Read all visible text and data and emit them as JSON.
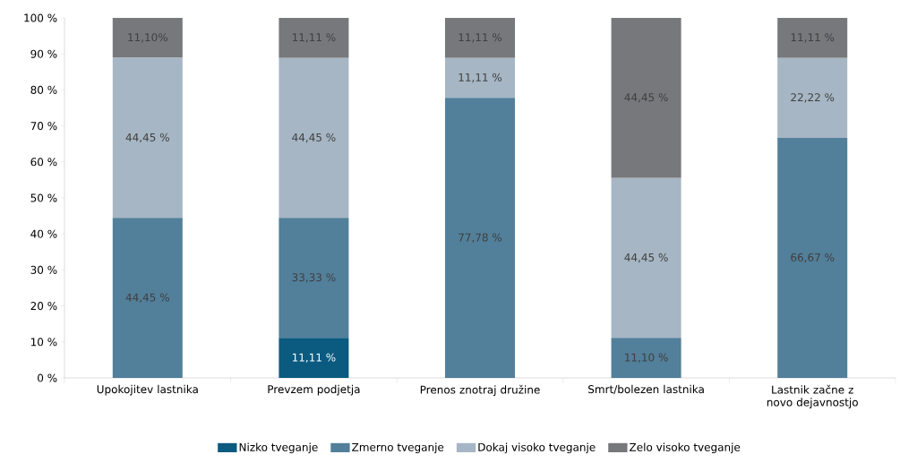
{
  "chart_data": {
    "type": "bar",
    "stacked": true,
    "legend": "bottom",
    "categories": [
      "Upokojitev lastnika",
      "Prevzem podjetja",
      "Prenos znotraj družine",
      "Smrt/bolezen lastnika",
      "Lastnik začne z novo dejavnostjo"
    ],
    "ylim": [
      0,
      100
    ],
    "yticks": [
      {
        "value": 0,
        "label": "0 %"
      },
      {
        "value": 10,
        "label": "10 %"
      },
      {
        "value": 20,
        "label": "20 %"
      },
      {
        "value": 30,
        "label": "30 %"
      },
      {
        "value": 40,
        "label": "40 %"
      },
      {
        "value": 50,
        "label": "50 %"
      },
      {
        "value": 60,
        "label": "60 %"
      },
      {
        "value": 70,
        "label": "70 %"
      },
      {
        "value": 80,
        "label": "80 %"
      },
      {
        "value": 90,
        "label": "90 %"
      },
      {
        "value": 100,
        "label": "100 %"
      }
    ],
    "series": [
      {
        "name": "Nizko tveganje",
        "color": "#0b5a80",
        "values": [
          0,
          11.11,
          0,
          0,
          0
        ],
        "value_labels": [
          null,
          "11,11 %",
          null,
          null,
          null
        ]
      },
      {
        "name": "Zmerno tveganje",
        "color": "#527f9a",
        "values": [
          44.45,
          33.33,
          77.78,
          11.1,
          66.67
        ],
        "value_labels": [
          "44,45 %",
          "33,33 %",
          "77,78 %",
          "11,10 %",
          "66,67 %"
        ]
      },
      {
        "name": "Dokaj visoko tveganje",
        "color": "#a6b6c4",
        "values": [
          44.45,
          44.45,
          11.11,
          44.45,
          22.22
        ],
        "value_labels": [
          "44,45 %",
          "44,45 %",
          "11,11 %",
          "44,45 %",
          "22,22 %"
        ]
      },
      {
        "name": "Zelo visoko tveganje",
        "color": "#77787b",
        "values": [
          11.1,
          11.11,
          11.11,
          44.45,
          11.11
        ],
        "value_labels": [
          "11,10%",
          "11,11 %",
          "11,11 %",
          "44,45 %",
          "11,11 %"
        ]
      }
    ]
  }
}
